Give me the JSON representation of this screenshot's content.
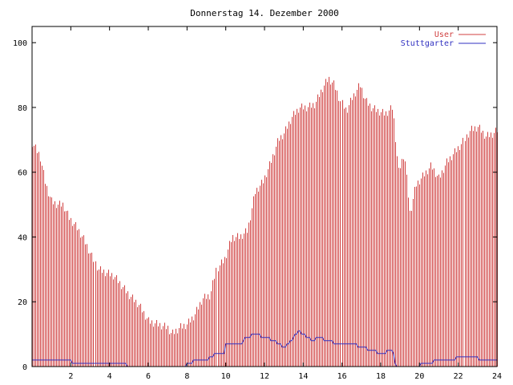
{
  "chart_data": {
    "type": "bar",
    "title": "Donnerstag 14. Dezember 2000",
    "xlabel": "",
    "ylabel": "",
    "xlim": [
      0,
      24
    ],
    "ylim": [
      0,
      105
    ],
    "x_ticks": [
      "2",
      "4",
      "6",
      "8",
      "10",
      "12",
      "14",
      "16",
      "18",
      "20",
      "22",
      "24"
    ],
    "y_ticks": [
      "0",
      "20",
      "40",
      "60",
      "80",
      "100"
    ],
    "legend_position": "top-right",
    "grid": false,
    "colors": {
      "user": "#d04040",
      "stuttgarter": "#3030c0",
      "axis": "#000000",
      "title": "#000000"
    },
    "series": [
      {
        "name": "User",
        "type": "bar",
        "step_hours": 0.0833,
        "key_points": [
          [
            0.0,
            69
          ],
          [
            0.4,
            65
          ],
          [
            0.7,
            56
          ],
          [
            1.0,
            51
          ],
          [
            1.3,
            50
          ],
          [
            1.6,
            50
          ],
          [
            1.9,
            46
          ],
          [
            2.3,
            43
          ],
          [
            2.7,
            39
          ],
          [
            3.0,
            35
          ],
          [
            3.4,
            30
          ],
          [
            3.8,
            29
          ],
          [
            4.2,
            28
          ],
          [
            4.6,
            25
          ],
          [
            5.0,
            22
          ],
          [
            5.5,
            19
          ],
          [
            6.0,
            14
          ],
          [
            6.5,
            13
          ],
          [
            7.0,
            12
          ],
          [
            7.2,
            10
          ],
          [
            7.6,
            12
          ],
          [
            8.0,
            13
          ],
          [
            8.4,
            16
          ],
          [
            8.8,
            21
          ],
          [
            9.2,
            22
          ],
          [
            9.5,
            30
          ],
          [
            9.9,
            33
          ],
          [
            10.3,
            40
          ],
          [
            10.7,
            40
          ],
          [
            11.1,
            42
          ],
          [
            11.5,
            54
          ],
          [
            11.9,
            57
          ],
          [
            12.3,
            63
          ],
          [
            12.7,
            70
          ],
          [
            13.0,
            72
          ],
          [
            13.4,
            77
          ],
          [
            13.8,
            80
          ],
          [
            14.2,
            80
          ],
          [
            14.6,
            81
          ],
          [
            15.0,
            86
          ],
          [
            15.3,
            89
          ],
          [
            15.6,
            87
          ],
          [
            15.9,
            82
          ],
          [
            16.2,
            79
          ],
          [
            16.5,
            83
          ],
          [
            16.9,
            87
          ],
          [
            17.2,
            82
          ],
          [
            17.5,
            80
          ],
          [
            17.8,
            79
          ],
          [
            18.2,
            78
          ],
          [
            18.6,
            80
          ],
          [
            18.9,
            60
          ],
          [
            19.2,
            66
          ],
          [
            19.5,
            47
          ],
          [
            19.8,
            56
          ],
          [
            20.2,
            59
          ],
          [
            20.6,
            62
          ],
          [
            21.0,
            58
          ],
          [
            21.4,
            63
          ],
          [
            21.8,
            66
          ],
          [
            22.2,
            69
          ],
          [
            22.6,
            73
          ],
          [
            23.0,
            74
          ],
          [
            23.4,
            71
          ],
          [
            23.8,
            72
          ],
          [
            24.0,
            73
          ]
        ]
      },
      {
        "name": "Stuttgarter",
        "type": "line",
        "step_hours": 0.0833,
        "key_points": [
          [
            0.0,
            2
          ],
          [
            2.0,
            2
          ],
          [
            2.1,
            1
          ],
          [
            4.8,
            1
          ],
          [
            4.9,
            0
          ],
          [
            7.9,
            0
          ],
          [
            8.0,
            1
          ],
          [
            8.5,
            2
          ],
          [
            9.0,
            2
          ],
          [
            9.5,
            4
          ],
          [
            9.9,
            4
          ],
          [
            10.0,
            7
          ],
          [
            10.8,
            7
          ],
          [
            11.0,
            9
          ],
          [
            11.5,
            10
          ],
          [
            12.0,
            9
          ],
          [
            12.5,
            8
          ],
          [
            13.0,
            6
          ],
          [
            13.5,
            9
          ],
          [
            13.8,
            11
          ],
          [
            14.0,
            10
          ],
          [
            14.5,
            8
          ],
          [
            14.8,
            9
          ],
          [
            15.2,
            8
          ],
          [
            15.8,
            7
          ],
          [
            16.5,
            7
          ],
          [
            17.0,
            6
          ],
          [
            17.6,
            5
          ],
          [
            18.0,
            4
          ],
          [
            18.6,
            5
          ],
          [
            18.8,
            0
          ],
          [
            20.0,
            0
          ],
          [
            20.1,
            1
          ],
          [
            20.6,
            1
          ],
          [
            20.8,
            2
          ],
          [
            21.8,
            2
          ],
          [
            22.0,
            3
          ],
          [
            22.8,
            3
          ],
          [
            23.2,
            2
          ],
          [
            24.0,
            2
          ]
        ]
      }
    ]
  }
}
